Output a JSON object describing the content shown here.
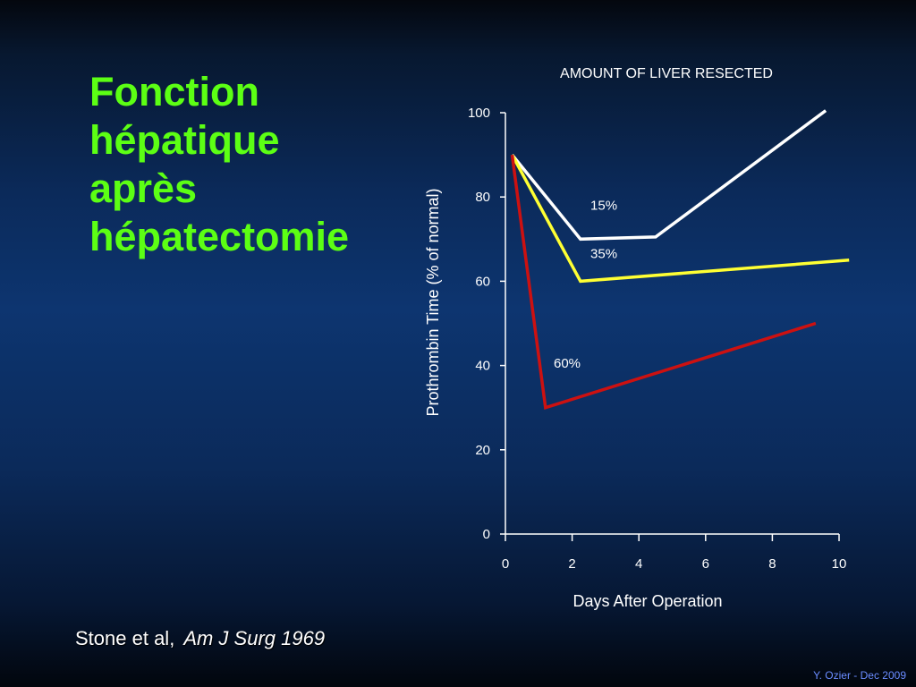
{
  "slide": {
    "title_lines": [
      "Fonction",
      "hépatique",
      "après",
      "hépatectomie"
    ],
    "citation_authors": "Stone et al,",
    "citation_journal": "Am J Surg 1969",
    "footer": "Y. Ozier - Dec 2009"
  },
  "colors": {
    "title": "#5cff14",
    "series_15": "#ffffff",
    "series_35": "#ffff33",
    "series_60": "#cc1111",
    "footer": "#6a8cff"
  },
  "chart_data": {
    "type": "line",
    "title": "AMOUNT OF LIVER RESECTED",
    "xlabel": "Days After Operation",
    "ylabel": "Prothrombin Time (% of normal)",
    "xlim": [
      0,
      10
    ],
    "ylim": [
      0,
      100
    ],
    "xticks": [
      0,
      2,
      4,
      6,
      8,
      10
    ],
    "yticks": [
      0,
      20,
      40,
      60,
      80,
      100
    ],
    "grid": false,
    "legend": "none (series labeled inline)",
    "series": [
      {
        "name": "15%",
        "color": "#ffffff",
        "x": [
          0.2,
          2.25,
          4.5,
          9.6
        ],
        "y": [
          90,
          70,
          70.5,
          100.5
        ],
        "label_at": [
          2.95,
          77
        ]
      },
      {
        "name": "35%",
        "color": "#ffff33",
        "x": [
          0.2,
          2.25,
          10.3
        ],
        "y": [
          90,
          60,
          65
        ],
        "label_at": [
          2.95,
          65.5
        ]
      },
      {
        "name": "60%",
        "color": "#cc1111",
        "x": [
          0.2,
          1.2,
          9.3
        ],
        "y": [
          90,
          30,
          50
        ],
        "label_at": [
          1.85,
          39.5
        ]
      }
    ]
  }
}
